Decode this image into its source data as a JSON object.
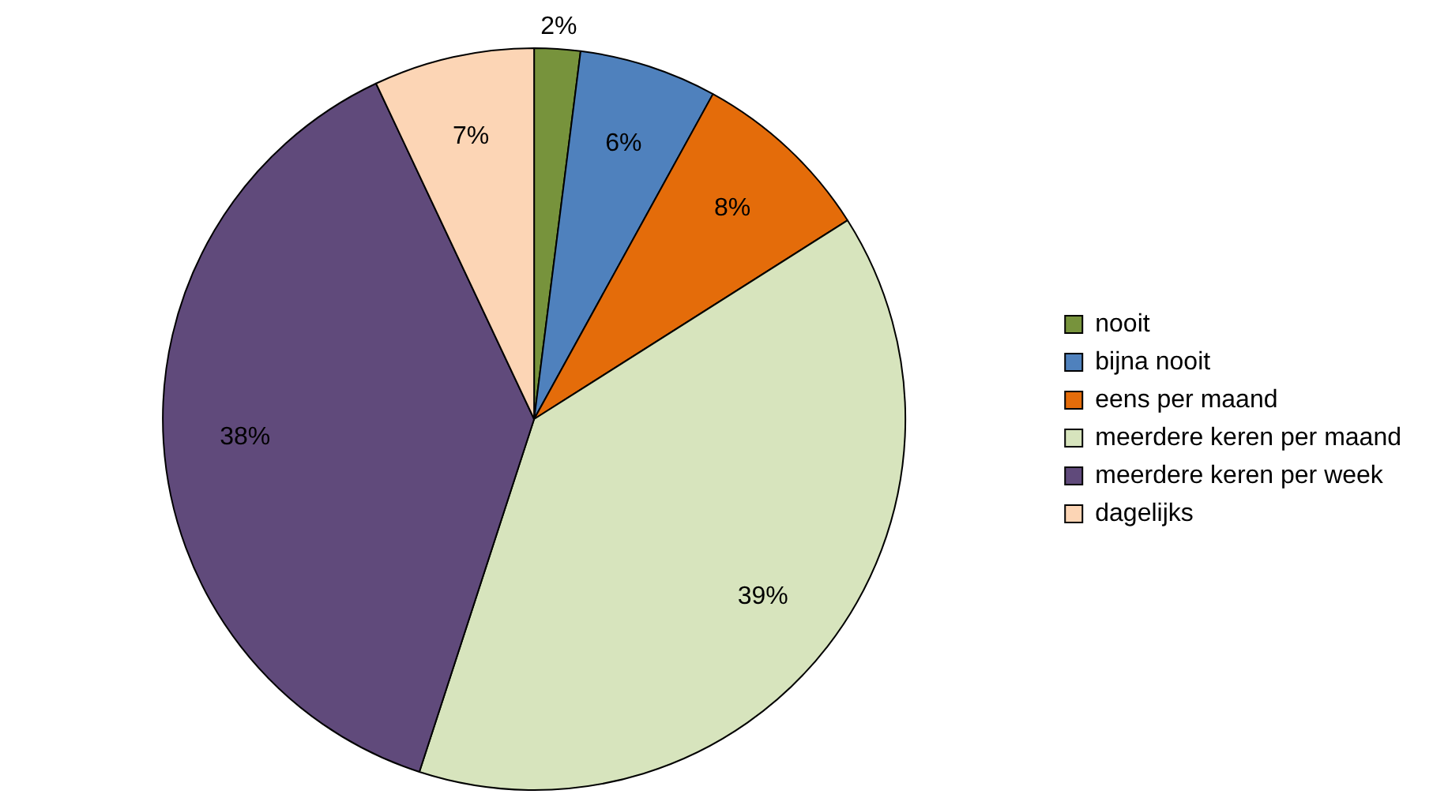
{
  "chart_data": {
    "type": "pie",
    "categories": [
      "nooit",
      "bijna nooit",
      "eens per maand",
      "meerdere keren per maand",
      "meerdere keren per week",
      "dagelijks"
    ],
    "values": [
      2,
      6,
      8,
      39,
      38,
      7
    ],
    "value_labels": [
      "2%",
      "6%",
      "8%",
      "39%",
      "38%",
      "7%"
    ],
    "colors": [
      "#77933c",
      "#4f81bd",
      "#e46c0a",
      "#d7e4bd",
      "#604a7b",
      "#fcd5b5"
    ],
    "legend": "right"
  }
}
